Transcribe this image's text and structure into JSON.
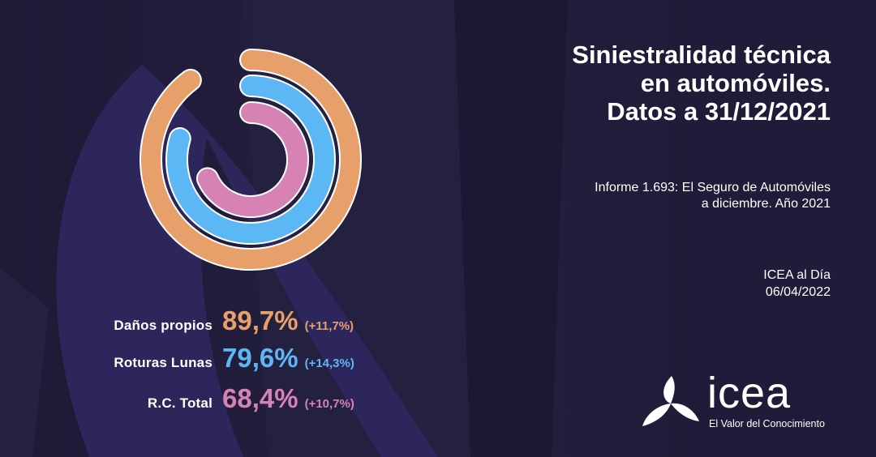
{
  "title_lines": [
    "Siniestralidad técnica",
    "en automóviles.",
    "Datos a 31/12/2021"
  ],
  "report_lines": [
    "Informe 1.693: El Seguro de Automóviles",
    "a diciembre. Año 2021"
  ],
  "publication_lines": [
    "ICEA al Día",
    "06/04/2022"
  ],
  "brand": {
    "name": "icea",
    "tagline": "El Valor del Conocimiento"
  },
  "colors": {
    "orange": "#e8a06a",
    "blue": "#5cb8f5",
    "pink": "#d782b5",
    "background": "#1e1a38",
    "accent_shape": "#3a3270"
  },
  "chart_data": {
    "type": "radial-bar",
    "unit": "%",
    "max": 100,
    "series": [
      {
        "name": "Daños propios",
        "value": 89.7,
        "label": "89,7%",
        "change": 11.7,
        "change_label": "(+11,7%)",
        "color": "#e8a06a"
      },
      {
        "name": "Roturas Lunas",
        "value": 79.6,
        "label": "79,6%",
        "change": 14.3,
        "change_label": "(+14,3%)",
        "color": "#5cb8f5"
      },
      {
        "name": "R.C. Total",
        "value": 68.4,
        "label": "68,4%",
        "change": 10.7,
        "change_label": "(+10,7%)",
        "color": "#d782b5"
      }
    ]
  }
}
